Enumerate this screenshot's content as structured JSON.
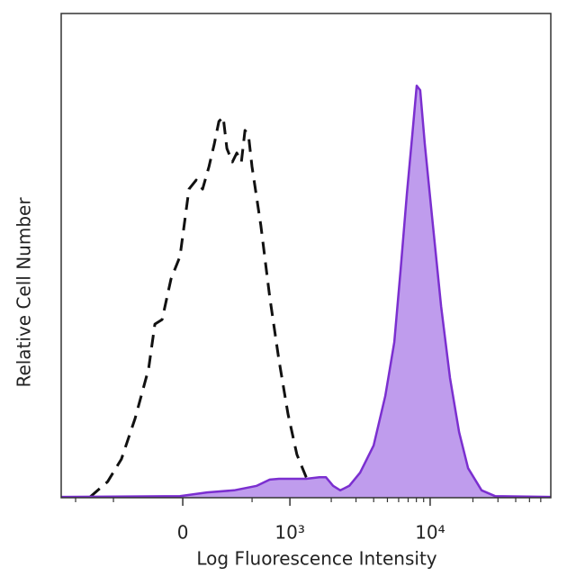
{
  "chart_data": {
    "type": "area",
    "x_label": "Log Fluorescence Intensity",
    "y_label": "Relative Cell Number",
    "xscale": "biexponential",
    "xlim": [
      -1278,
      70600
    ],
    "ylim": [
      0,
      118
    ],
    "xticks": [
      {
        "value": 0,
        "label": "0"
      },
      {
        "value": 1000,
        "label": "10³"
      },
      {
        "value": 10000,
        "label": "10⁴"
      }
    ],
    "xminor_ticks": [
      -1000,
      -500,
      500,
      2000,
      3000,
      4000,
      5000,
      6000,
      7000,
      8000,
      9000,
      20000,
      30000,
      40000,
      50000,
      60000
    ],
    "series": [
      {
        "color": "#111111",
        "fill": false,
        "dashed": true,
        "x": [
          -775,
          -560,
          -424,
          -310,
          -212,
          -170,
          -124,
          -70,
          -16,
          37,
          80,
          119,
          159,
          194,
          225,
          256,
          283,
          325,
          361,
          400,
          432,
          465,
          499,
          593,
          700,
          826,
          967,
          1128,
          1318,
          1530,
          1915,
          3207
        ],
        "values": [
          0.2,
          3.9,
          9.4,
          19.3,
          31.4,
          42.3,
          43.4,
          53.3,
          58.8,
          75.2,
          77.4,
          75.2,
          80.7,
          86.2,
          91.7,
          92.8,
          85.1,
          81.8,
          84.0,
          81.8,
          89.5,
          88.4,
          80.7,
          66.4,
          48.9,
          33.6,
          20.4,
          10.5,
          5.0,
          1.8,
          0.7,
          0.2
        ]
      },
      {
        "color": "#7b2fd0",
        "fill_color": "#bf9ced",
        "fill": true,
        "dashed": false,
        "x": [
          -1278,
          -16,
          147,
          339,
          549,
          700,
          826,
          1318,
          1648,
          1831,
          2060,
          2319,
          2687,
          3207,
          3993,
          4834,
          5594,
          6195,
          6861,
          7484,
          8044,
          8518,
          9173,
          10301,
          11939,
          13796,
          15980,
          18491,
          23005,
          28610,
          70600
        ],
        "values": [
          0.2,
          0.4,
          1.3,
          1.8,
          2.9,
          4.4,
          4.6,
          4.6,
          5.0,
          5.0,
          2.9,
          1.8,
          2.9,
          6.1,
          12.7,
          24.8,
          37.9,
          55.5,
          74.1,
          88.4,
          100.4,
          99.3,
          86.2,
          68.6,
          46.7,
          29.2,
          16.0,
          7.2,
          1.8,
          0.4,
          0.2
        ]
      }
    ]
  }
}
